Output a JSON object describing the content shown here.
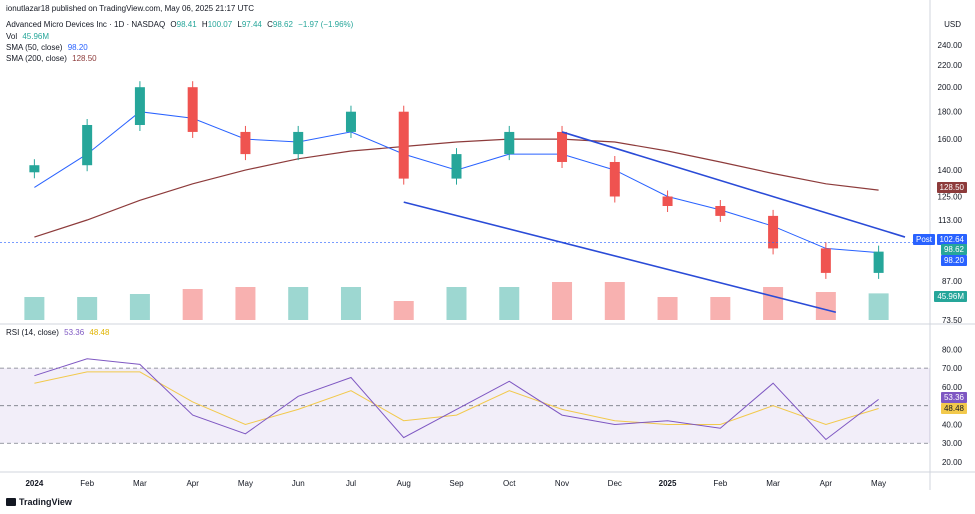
{
  "publisher_line": "ionutlazar18 published on TradingView.com, May 06, 2025 21:17 UTC",
  "symbol": {
    "name": "Advanced Micro Devices Inc · 1D · NASDAQ",
    "o_label": "O",
    "o": "98.41",
    "h_label": "H",
    "h": "100.07",
    "l_label": "L",
    "l": "97.44",
    "c_label": "C",
    "c": "98.62",
    "change": "−1.97 (−1.96%)"
  },
  "indicators": {
    "vol_label": "Vol",
    "vol": "45.96M",
    "sma50_label": "SMA (50, close)",
    "sma50": "98.20",
    "sma200_label": "SMA (200, close)",
    "sma200": "128.50",
    "rsi_label": "RSI (14, close)",
    "rsi": "53.36",
    "rsi_ma": "48.48"
  },
  "currency": "USD",
  "price_axis": [
    "240.00",
    "220.00",
    "200.00",
    "180.00",
    "160.00",
    "140.00",
    "125.00",
    "113.00",
    "98.62",
    "87.00",
    "73.50"
  ],
  "rsi_axis": [
    "80.00",
    "70.00",
    "60.00",
    "40.00",
    "30.00",
    "20.00"
  ],
  "time_axis": [
    "2024",
    "Feb",
    "Mar",
    "Apr",
    "May",
    "Jun",
    "Jul",
    "Aug",
    "Sep",
    "Oct",
    "Nov",
    "Dec",
    "2025",
    "Feb",
    "Mar",
    "Apr",
    "May"
  ],
  "tags": {
    "post_label": "Post",
    "post_value": "102.64",
    "last": "98.62",
    "sma50": "98.20",
    "sma200": "128.50",
    "vol": "45.96M",
    "rsi": "53.36",
    "rsi_ma": "48.48"
  },
  "brand": "TradingView",
  "colors": {
    "up": "#26a69a",
    "down": "#ef5350",
    "sma50": "#2962ff",
    "sma200": "#8d3b3b",
    "rsi": "#7e57c2",
    "rsi_ma": "#f2c94c",
    "trend": "#2a4bd7"
  },
  "chart_data": {
    "type": "line",
    "title": "Advanced Micro Devices Inc · 1D · NASDAQ",
    "x": [
      "2024",
      "Feb",
      "Mar",
      "Apr",
      "May",
      "Jun",
      "Jul",
      "Aug",
      "Sep",
      "Oct",
      "Nov",
      "Dec",
      "2025",
      "Feb",
      "Mar",
      "Apr",
      "May"
    ],
    "series": [
      {
        "name": "Price (close)",
        "values": [
          143,
          170,
          200,
          165,
          150,
          165,
          180,
          135,
          150,
          165,
          145,
          125,
          120,
          115,
          100,
          90,
          98.62
        ]
      },
      {
        "name": "SMA (50, close)",
        "values": [
          130,
          150,
          180,
          175,
          160,
          158,
          165,
          150,
          140,
          150,
          150,
          140,
          125,
          118,
          110,
          100,
          98.2
        ]
      },
      {
        "name": "SMA (200, close)",
        "values": [
          105,
          113,
          123,
          132,
          140,
          147,
          152,
          155,
          158,
          160,
          160,
          158,
          152,
          145,
          138,
          132,
          128.5
        ]
      }
    ],
    "rsi_series": [
      {
        "name": "RSI (14, close)",
        "values": [
          66,
          75,
          72,
          45,
          35,
          55,
          65,
          33,
          48,
          63,
          45,
          40,
          42,
          38,
          62,
          32,
          53.36
        ]
      },
      {
        "name": "RSI MA",
        "values": [
          62,
          68,
          68,
          52,
          40,
          48,
          58,
          42,
          45,
          58,
          48,
          42,
          40,
          40,
          50,
          40,
          48.48
        ]
      }
    ],
    "ylim": [
      73.5,
      245
    ],
    "rsi_ylim": [
      20,
      85
    ],
    "scale": "log",
    "grid": false,
    "legend": "top-left"
  }
}
